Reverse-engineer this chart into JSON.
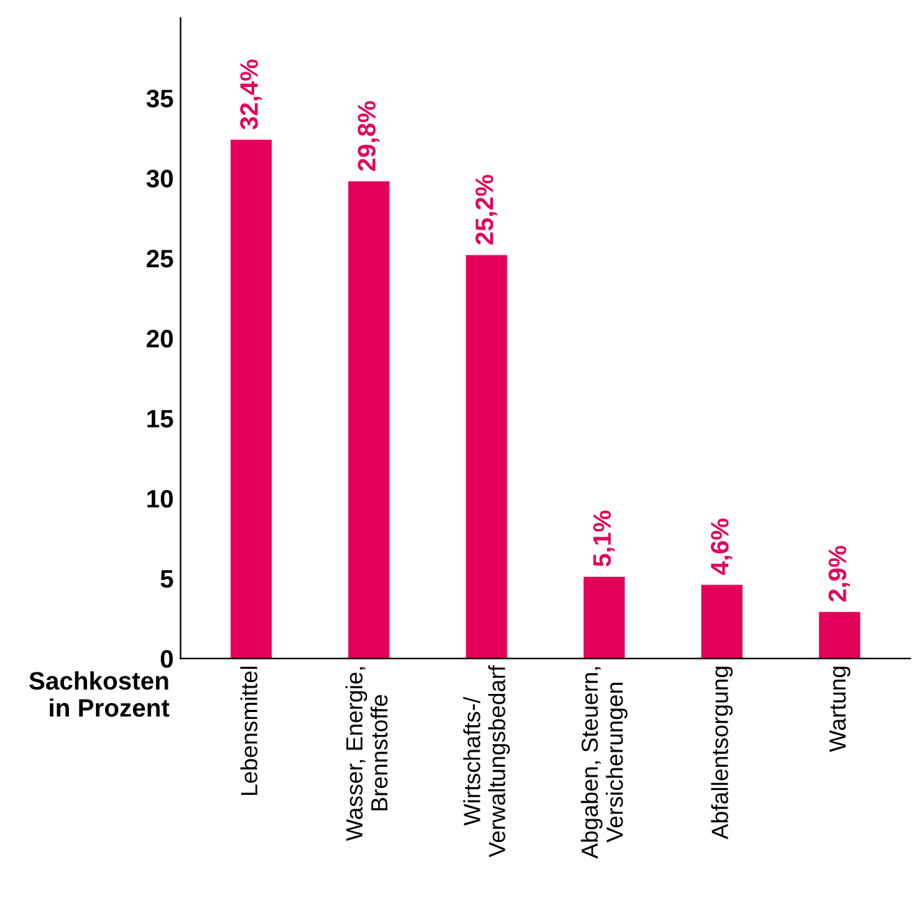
{
  "chart_data": {
    "type": "bar",
    "ylabel": "Sachkosten\nin Prozent",
    "categories": [
      "Lebensmittel",
      "Wasser, Energie,\nBrennstoffe",
      "Wirtschafts-/\nVerwaltungsbedarf",
      "Abgaben, Steuern,\nVersicherungen",
      "Abfallentsorgung",
      "Wartung"
    ],
    "values": [
      32.4,
      29.8,
      25.2,
      5.1,
      4.6,
      2.9
    ],
    "value_labels": [
      "32,4%",
      "29,8%",
      "25,2%",
      "5,1%",
      "4,6%",
      "2,9%"
    ],
    "color": "#e2005a",
    "ylim": [
      0,
      40
    ],
    "yticks": [
      0,
      5,
      10,
      15,
      20,
      25,
      30,
      35
    ],
    "grid": false
  }
}
